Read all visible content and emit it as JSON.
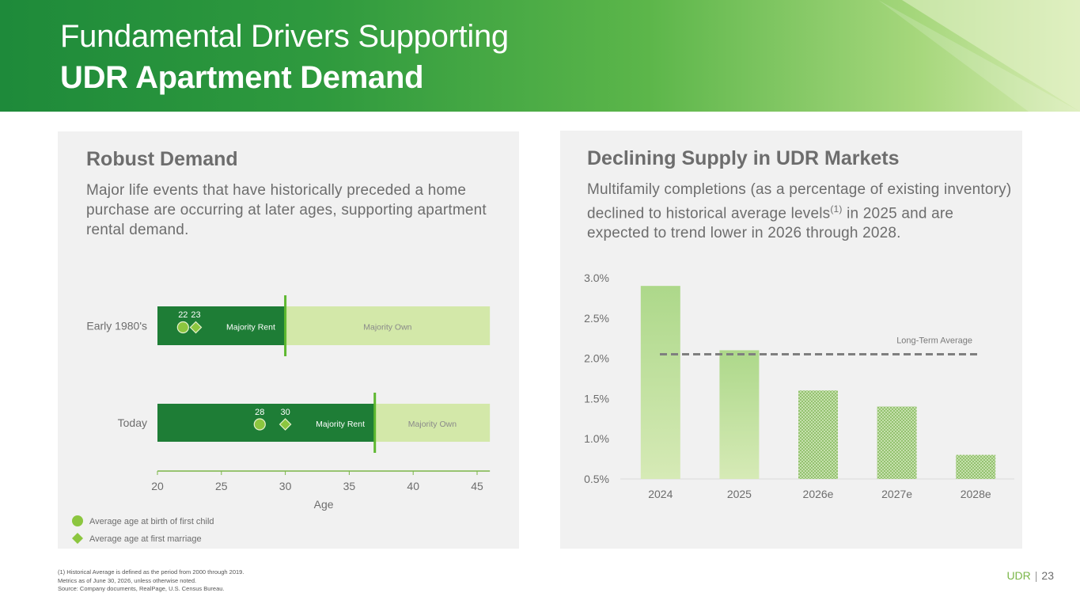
{
  "header": {
    "title_line1": "Fundamental Drivers Supporting",
    "title_line2": "UDR Apartment Demand"
  },
  "left_panel": {
    "title": "Robust Demand",
    "description": "Major life events that have historically preceded a home purchase are occurring at later ages, supporting apartment rental demand."
  },
  "right_panel": {
    "title": "Declining Supply in UDR Markets",
    "description_part1": "Multifamily completions (as a percentage of existing inventory) declined to historical average levels",
    "description_sup": "(1)",
    "description_part2": " in 2025 and are expected to trend lower in 2026 through 2028."
  },
  "chart_data": [
    {
      "type": "bar",
      "orientation": "horizontal",
      "xlabel": "Age",
      "xlim": [
        20,
        46
      ],
      "xticks": [
        20,
        25,
        30,
        35,
        40,
        45
      ],
      "categories": [
        "Early 1980's",
        "Today"
      ],
      "segments": [
        {
          "category": "Early 1980's",
          "rent_label": "Majority Rent",
          "own_label": "Majority Own",
          "rent_end": 30,
          "own_end": 46
        },
        {
          "category": "Today",
          "rent_label": "Majority Rent",
          "own_label": "Majority Own",
          "rent_end": 37,
          "own_end": 46
        }
      ],
      "series": [
        {
          "name": "Average age at birth of first child",
          "marker": "circle",
          "values": [
            22,
            28
          ]
        },
        {
          "name": "Average age at first marriage",
          "marker": "diamond",
          "values": [
            23,
            30
          ]
        }
      ],
      "legend_position": "bottom-left",
      "colors": {
        "rent": "#1e7d36",
        "own": "#d3e8a9",
        "marker": "#8cc63f",
        "divider": "#5db82f",
        "axis": "#7ab648"
      }
    },
    {
      "type": "bar",
      "categories": [
        "2024",
        "2025",
        "2026e",
        "2027e",
        "2028e"
      ],
      "values": [
        2.9,
        2.1,
        1.6,
        1.4,
        0.8
      ],
      "estimated": [
        false,
        false,
        true,
        true,
        true
      ],
      "ylim": [
        0.5,
        3.0
      ],
      "yticks": [
        "0.5%",
        "1.0%",
        "1.5%",
        "2.0%",
        "2.5%",
        "3.0%"
      ],
      "reference_line": {
        "label": "Long-Term Average",
        "value": 2.05
      },
      "colors": {
        "bar": "#c9e39f",
        "hatch": "#8fbf6a",
        "reference": "#7f7f7f"
      }
    }
  ],
  "footer": {
    "footnote1": "(1)   Historical Average is defined as the period from 2000 through 2019.",
    "footnote2": "Metrics as of June 30, 2026, unless otherwise noted.",
    "footnote3": "Source: Company documents, RealPage, U.S. Census Bureau.",
    "brand": "UDR",
    "separator": "|",
    "page_number": "23"
  }
}
